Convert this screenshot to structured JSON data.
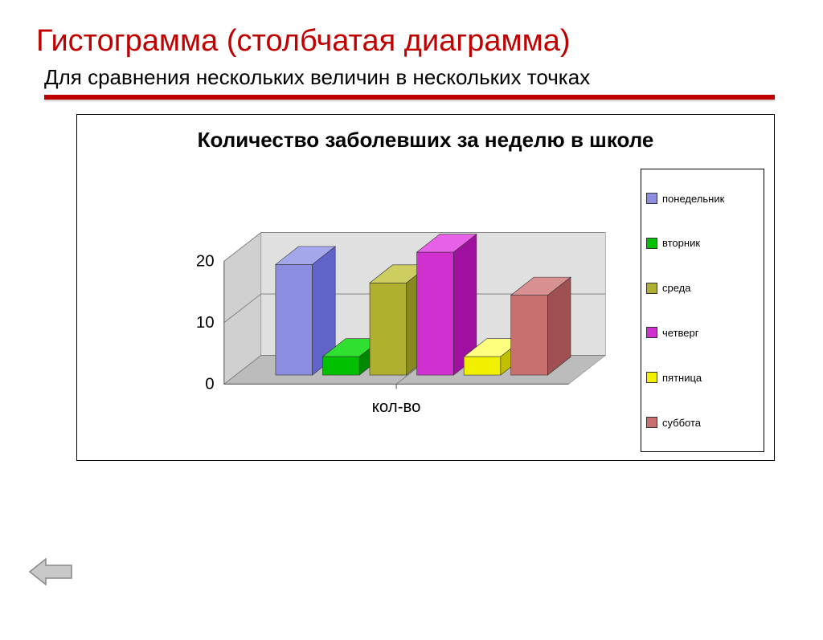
{
  "slide": {
    "title": "Гистограмма (столбчатая диаграмма)",
    "subtitle": "Для сравнения нескольких величин в нескольких точках",
    "title_color": "#c00000",
    "title_fontsize": 38,
    "subtitle_fontsize": 26
  },
  "chart": {
    "type": "bar-3d",
    "title": "Количество заболевших за неделю в школе",
    "title_fontsize": 26,
    "xlabel": "кол-во",
    "ylim": [
      0,
      20
    ],
    "yticks": [
      0,
      10,
      20
    ],
    "background_color": "#ffffff",
    "floor_color": "#c0c0c0",
    "wall_color": "#d8d8d8",
    "bars": [
      {
        "label": "понедельник",
        "value": 18,
        "color": "#8b8de0",
        "color_dark": "#6063c8",
        "color_top": "#a5a7ed"
      },
      {
        "label": "вторник",
        "value": 3,
        "color": "#00c000",
        "color_dark": "#008800",
        "color_top": "#30e030"
      },
      {
        "label": "среда",
        "value": 15,
        "color": "#b0b030",
        "color_dark": "#888820",
        "color_top": "#cdcd60"
      },
      {
        "label": "четверг",
        "value": 20,
        "color": "#d030d0",
        "color_dark": "#a010a0",
        "color_top": "#e860e8"
      },
      {
        "label": "пятница",
        "value": 3,
        "color": "#f0f000",
        "color_dark": "#c0c000",
        "color_top": "#ffff80"
      },
      {
        "label": "суббота",
        "value": 13,
        "color": "#c87070",
        "color_dark": "#a05050",
        "color_top": "#d89090"
      }
    ],
    "legend_fontsize": 13
  },
  "nav": {
    "back_arrow_color": "#b8b8b8"
  }
}
